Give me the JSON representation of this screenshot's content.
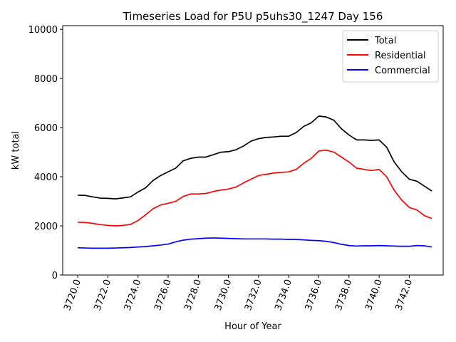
{
  "chart_data": {
    "type": "line",
    "title": "Timeseries Load for P5U p5uhs30_1247  Day 156",
    "xlabel": "Hour of Year",
    "ylabel": "kW total",
    "xlim": [
      3719.0,
      3744.25
    ],
    "ylim": [
      0,
      10150
    ],
    "xticks": [
      3720,
      3722,
      3724,
      3726,
      3728,
      3730,
      3732,
      3734,
      3736,
      3738,
      3740,
      3742
    ],
    "xtick_labels": [
      "3720.0",
      "3722.0",
      "3724.0",
      "3726.0",
      "3728.0",
      "3730.0",
      "3732.0",
      "3734.0",
      "3736.0",
      "3738.0",
      "3740.0",
      "3742.0"
    ],
    "yticks": [
      0,
      2000,
      4000,
      6000,
      8000,
      10000
    ],
    "ytick_labels": [
      "0",
      "2000",
      "4000",
      "6000",
      "8000",
      "10000"
    ],
    "legend_position": "top-right",
    "x": [
      3720,
      3720.5,
      3721,
      3721.5,
      3722,
      3722.5,
      3723,
      3723.5,
      3724,
      3724.5,
      3725,
      3725.5,
      3726,
      3726.5,
      3727,
      3727.5,
      3728,
      3728.5,
      3729,
      3729.5,
      3730,
      3730.5,
      3731,
      3731.5,
      3732,
      3732.5,
      3733,
      3733.5,
      3734,
      3734.5,
      3735,
      3735.5,
      3736,
      3736.5,
      3737,
      3737.5,
      3738,
      3738.5,
      3739,
      3739.5,
      3740,
      3740.5,
      3741,
      3741.5,
      3742,
      3742.5,
      3743,
      3743.5
    ],
    "series": [
      {
        "name": "Total",
        "color": "#000000",
        "values": [
          3250,
          3240,
          3180,
          3130,
          3120,
          3100,
          3140,
          3180,
          3380,
          3550,
          3850,
          4050,
          4200,
          4350,
          4650,
          4750,
          4800,
          4800,
          4900,
          5000,
          5020,
          5100,
          5250,
          5450,
          5550,
          5600,
          5620,
          5650,
          5650,
          5800,
          6050,
          6200,
          6470,
          6430,
          6300,
          5950,
          5700,
          5500,
          5500,
          5480,
          5500,
          5200,
          4600,
          4200,
          3900,
          3820,
          3620,
          3420
        ]
      },
      {
        "name": "Residential",
        "color": "#ff0000",
        "values": [
          2150,
          2140,
          2100,
          2050,
          2020,
          2000,
          2020,
          2060,
          2220,
          2450,
          2700,
          2850,
          2920,
          3000,
          3200,
          3300,
          3300,
          3320,
          3400,
          3460,
          3500,
          3580,
          3750,
          3900,
          4050,
          4100,
          4150,
          4180,
          4200,
          4300,
          4550,
          4750,
          5050,
          5080,
          5000,
          4800,
          4600,
          4350,
          4300,
          4250,
          4300,
          4000,
          3450,
          3050,
          2750,
          2650,
          2420,
          2300
        ]
      },
      {
        "name": "Commercial",
        "color": "#0000ff",
        "values": [
          1110,
          1100,
          1090,
          1090,
          1090,
          1100,
          1110,
          1120,
          1140,
          1160,
          1190,
          1220,
          1260,
          1350,
          1420,
          1460,
          1480,
          1500,
          1510,
          1500,
          1490,
          1480,
          1470,
          1470,
          1470,
          1470,
          1460,
          1460,
          1450,
          1450,
          1430,
          1410,
          1400,
          1370,
          1320,
          1250,
          1200,
          1180,
          1190,
          1190,
          1200,
          1190,
          1180,
          1170,
          1170,
          1200,
          1190,
          1140
        ]
      }
    ]
  }
}
